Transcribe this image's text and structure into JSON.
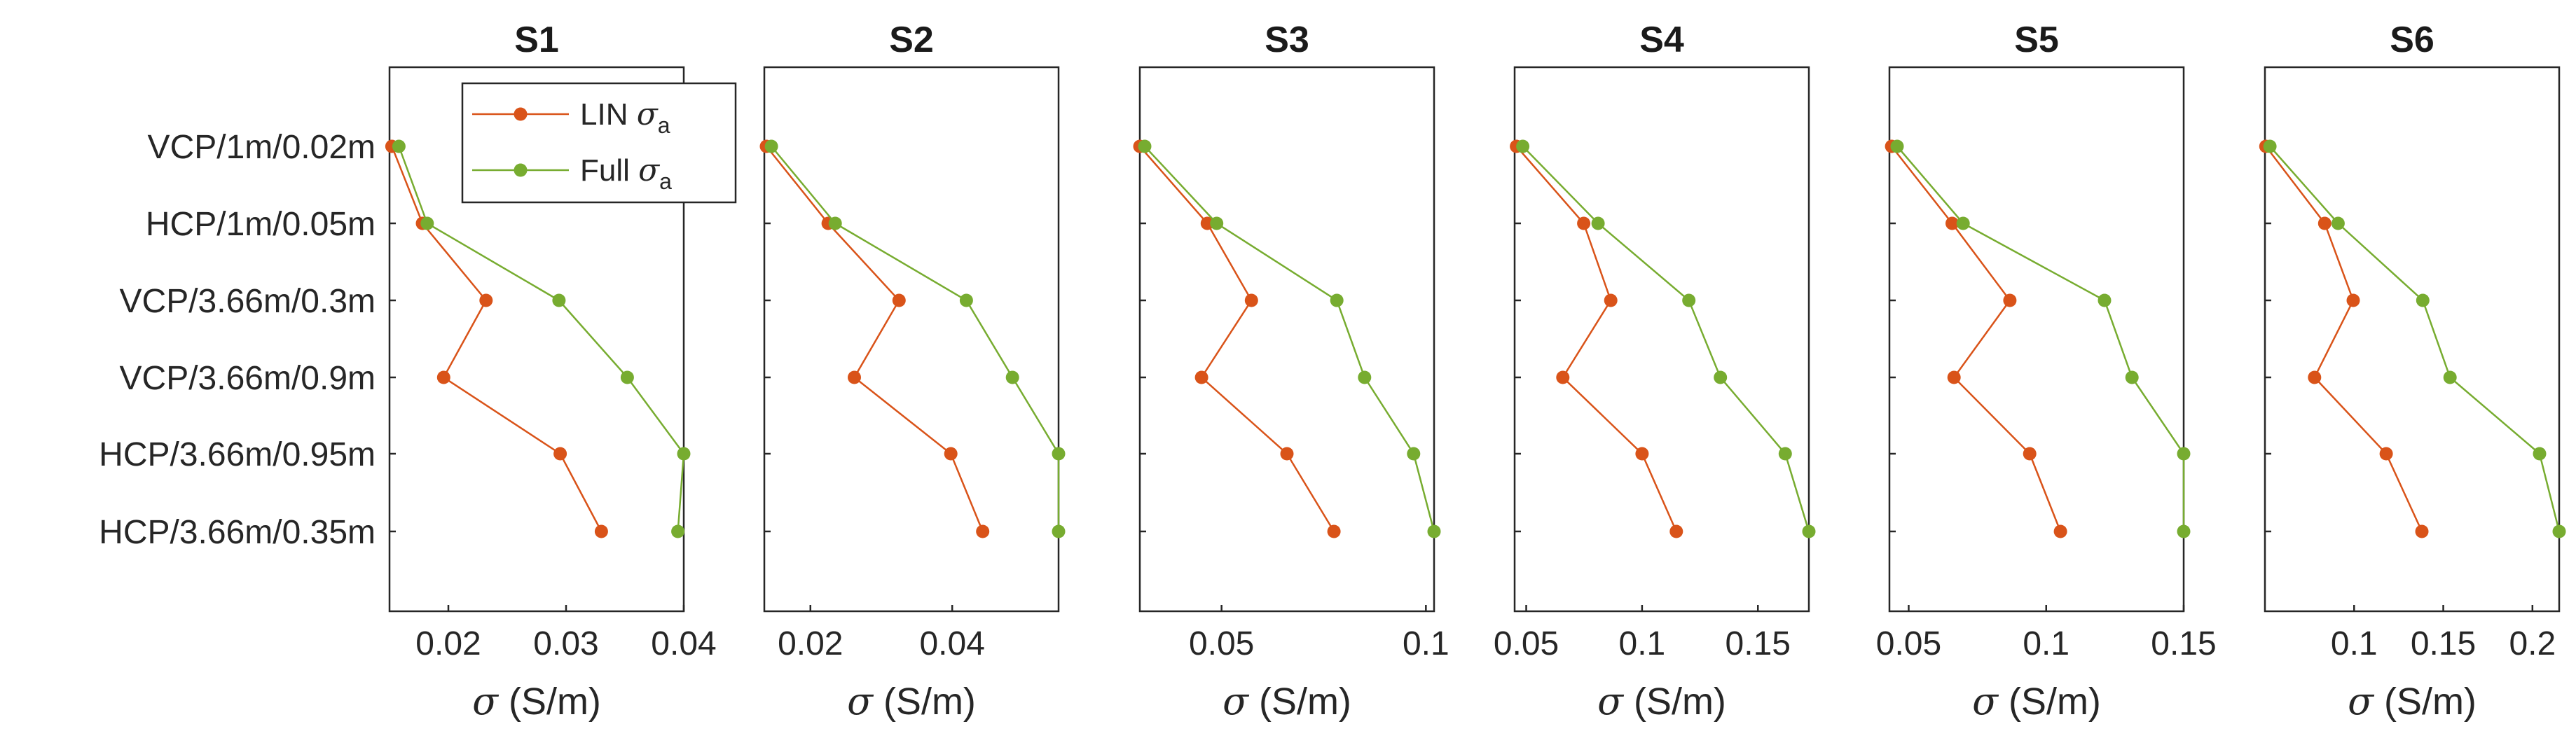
{
  "chart_data": {
    "type": "line",
    "categories": [
      "VCP/1m/0.02m",
      "HCP/1m/0.05m",
      "VCP/3.66m/0.3m",
      "VCP/3.66m/0.9m",
      "HCP/3.66m/0.95m",
      "HCP/3.66m/0.35m"
    ],
    "xlabel_symbol": "σ",
    "xlabel_unit": "(S/m)",
    "legend": [
      {
        "name": "LIN",
        "symbol": "σ",
        "subscript": "a",
        "color": "#D95319"
      },
      {
        "name": "Full",
        "symbol": "σ",
        "subscript": "a",
        "color": "#77AC30"
      }
    ],
    "panels": [
      {
        "title": "S1",
        "xlim": [
          0.015,
          0.04
        ],
        "xticks": [
          0.02,
          0.03,
          0.04
        ],
        "xtick_labels": [
          "0.02",
          "0.03",
          "0.04"
        ],
        "series": [
          {
            "name": "LIN",
            "values": [
              0.0152,
              0.0178,
              0.0232,
              0.0196,
              0.0295,
              0.033
            ]
          },
          {
            "name": "Full",
            "values": [
              0.0158,
              0.0182,
              0.0294,
              0.0352,
              0.04,
              0.0395
            ]
          }
        ]
      },
      {
        "title": "S2",
        "xlim": [
          0.0135,
          0.055
        ],
        "xticks": [
          0.02,
          0.04
        ],
        "xtick_labels": [
          "0.02",
          "0.04"
        ],
        "series": [
          {
            "name": "LIN",
            "values": [
              0.0138,
              0.0225,
              0.0325,
              0.0262,
              0.0398,
              0.0443
            ]
          },
          {
            "name": "Full",
            "values": [
              0.0145,
              0.0235,
              0.042,
              0.0485,
              0.055,
              0.055
            ]
          }
        ]
      },
      {
        "title": "S3",
        "xlim": [
          0.03,
          0.102
        ],
        "xticks": [
          0.05,
          0.1
        ],
        "xtick_labels": [
          "0.05",
          "0.1"
        ],
        "series": [
          {
            "name": "LIN",
            "values": [
              0.03,
              0.0465,
              0.0573,
              0.0451,
              0.066,
              0.0775
            ]
          },
          {
            "name": "Full",
            "values": [
              0.0312,
              0.0488,
              0.0782,
              0.085,
              0.097,
              0.102
            ]
          }
        ]
      },
      {
        "title": "S4",
        "xlim": [
          0.045,
          0.172
        ],
        "xticks": [
          0.05,
          0.1,
          0.15
        ],
        "xtick_labels": [
          "0.05",
          "0.1",
          "0.15"
        ],
        "series": [
          {
            "name": "LIN",
            "values": [
              0.0458,
              0.0748,
              0.0865,
              0.0658,
              0.1,
              0.1148
            ]
          },
          {
            "name": "Full",
            "values": [
              0.0485,
              0.081,
              0.1202,
              0.1338,
              0.1618,
              0.172
            ]
          }
        ]
      },
      {
        "title": "S5",
        "xlim": [
          0.043,
          0.15
        ],
        "xticks": [
          0.05,
          0.1,
          0.15
        ],
        "xtick_labels": [
          "0.05",
          "0.1",
          "0.15"
        ],
        "series": [
          {
            "name": "LIN",
            "values": [
              0.0438,
              0.0658,
              0.0868,
              0.0665,
              0.094,
              0.1052
            ]
          },
          {
            "name": "Full",
            "values": [
              0.0458,
              0.0698,
              0.1212,
              0.1312,
              0.15,
              0.15
            ]
          }
        ]
      },
      {
        "title": "S6",
        "xlim": [
          0.05,
          0.215
        ],
        "xticks": [
          0.1,
          0.15,
          0.2
        ],
        "xtick_labels": [
          "0.1",
          "0.15",
          "0.2"
        ],
        "series": [
          {
            "name": "LIN",
            "values": [
              0.0505,
              0.0835,
              0.0995,
              0.0778,
              0.118,
              0.138
            ]
          },
          {
            "name": "Full",
            "values": [
              0.0528,
              0.091,
              0.1385,
              0.1538,
              0.204,
              0.215
            ]
          }
        ]
      }
    ]
  }
}
